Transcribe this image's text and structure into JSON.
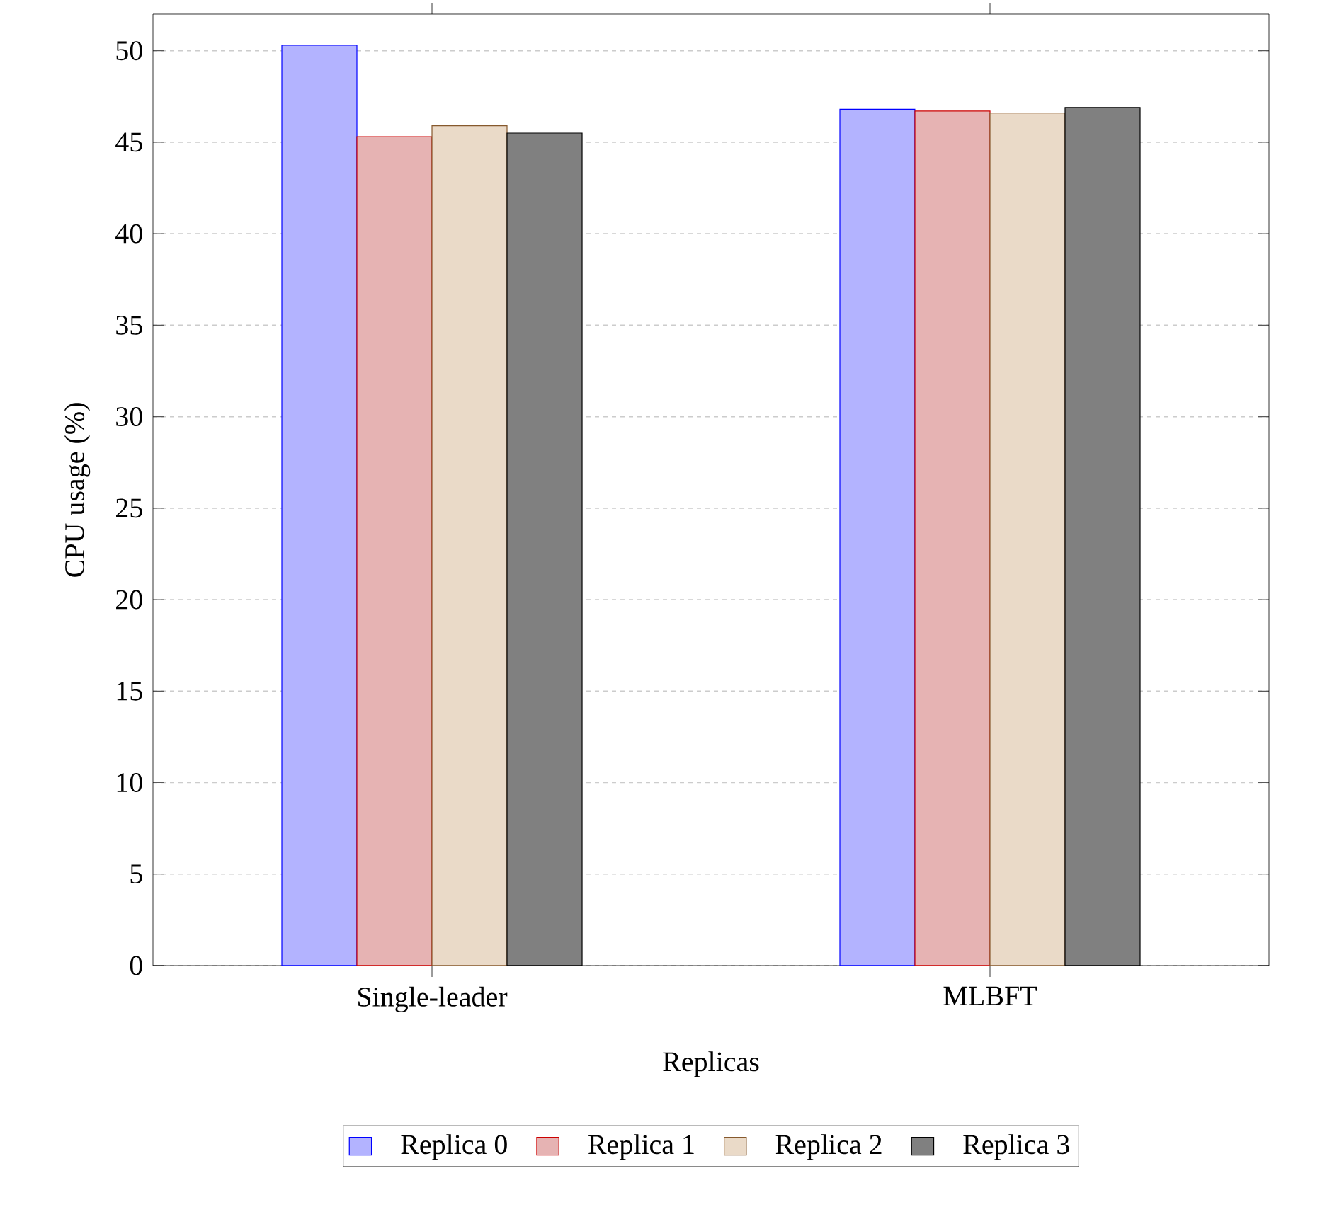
{
  "chart_data": {
    "type": "bar",
    "xlabel": "Replicas",
    "ylabel": "CPU usage (%)",
    "categories": [
      "Single-leader",
      "MLBFT"
    ],
    "series": [
      {
        "name": "Replica 0",
        "color": "#b3b3ff",
        "values": [
          50.3,
          46.8
        ]
      },
      {
        "name": "Replica 1",
        "color": "#e6b3b3",
        "values": [
          45.3,
          46.7
        ]
      },
      {
        "name": "Replica 2",
        "color": "#eadac8",
        "values": [
          45.9,
          46.6
        ]
      },
      {
        "name": "Replica 3",
        "color": "#808080",
        "values": [
          45.5,
          46.9
        ]
      }
    ],
    "ylim": [
      0,
      52
    ],
    "yticks": [
      0,
      5,
      10,
      15,
      20,
      25,
      30,
      35,
      40,
      45,
      50
    ],
    "grid": "y",
    "legend": "bottom"
  }
}
